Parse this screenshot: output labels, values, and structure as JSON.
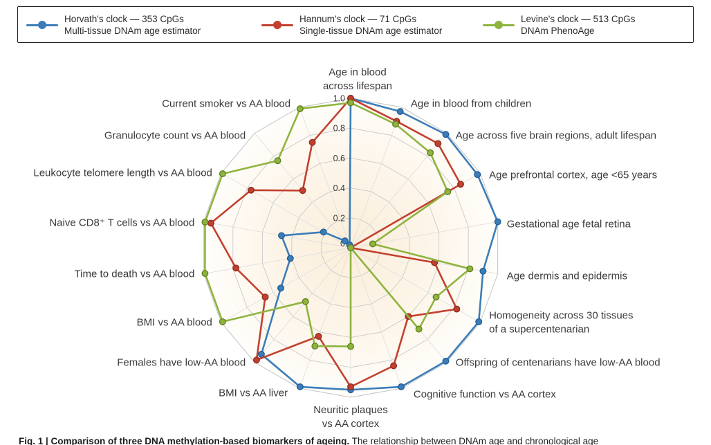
{
  "figure": {
    "caption_label": "Fig. 1 |",
    "caption_title": "Comparison of three DNA methylation-based biomarkers of ageing.",
    "caption_text": "The relationship between DNAm age and chronological age"
  },
  "legend": {
    "series": [
      {
        "line1": "Horvath's clock — 353 CpGs",
        "line2": "Multi-tissue DNAm age estimator"
      },
      {
        "line1": "Hannum's clock — 71 CpGs",
        "line2": "Single-tissue DNAm age estimator"
      },
      {
        "line1": "Levine's clock — 513 CpGs",
        "line2": "DNAm PhenoAge"
      }
    ]
  },
  "colors": {
    "horvath_blue": "#3c7db8",
    "horvath_edge": "#1e5d96",
    "hannum_red": "#c2402f",
    "hannum_edge": "#8e2b1f",
    "levine_green": "#8eb43f",
    "levine_edge": "#5f7f1e",
    "grid": "#c9c9c9",
    "spoke": "#e0e0e0",
    "fill_center": "#fbeeda",
    "fill_mid": "#fdf5e9",
    "fill_edge": "#fffefb",
    "text": "#3a3a3a"
  },
  "chart_data": {
    "type": "radar",
    "title": "",
    "rmin": 0,
    "rmax": 1.0,
    "grid": true,
    "legend_position": "top",
    "tick_labels": [
      "1.0",
      "0.8",
      "0.6",
      "0.4",
      "0.2",
      "0"
    ],
    "tick_values": [
      1.0,
      0.8,
      0.6,
      0.4,
      0.2,
      0
    ],
    "categories": [
      {
        "lines": [
          "Age in blood",
          "across lifespan"
        ]
      },
      {
        "lines": [
          "Age in blood from children"
        ]
      },
      {
        "lines": [
          "Age across five brain regions, adult lifespan"
        ]
      },
      {
        "lines": [
          "Age prefrontal cortex, age <65 years"
        ]
      },
      {
        "lines": [
          "Gestational age fetal retina"
        ]
      },
      {
        "lines": [
          "Age dermis and epidermis"
        ]
      },
      {
        "lines": [
          "Homogeneity across 30 tissues",
          "of a supercentenarian"
        ]
      },
      {
        "lines": [
          "Offspring of centenarians have low-AA blood"
        ]
      },
      {
        "lines": [
          "Cognitive function vs AA cortex"
        ]
      },
      {
        "lines": [
          "Neuritic plaques",
          "vs AA cortex"
        ]
      },
      {
        "lines": [
          "BMI vs AA liver"
        ]
      },
      {
        "lines": [
          "Females have low-AA blood"
        ]
      },
      {
        "lines": [
          "BMI vs AA blood"
        ]
      },
      {
        "lines": [
          "Time to death vs AA blood"
        ]
      },
      {
        "lines": [
          "Naive CD8⁺ T cells vs AA blood"
        ]
      },
      {
        "lines": [
          "Leukocyte telomere length vs AA blood"
        ]
      },
      {
        "lines": [
          "Granulocyte count vs AA blood"
        ]
      },
      {
        "lines": [
          "Current smoker vs AA blood"
        ]
      }
    ],
    "series": [
      {
        "name": "Horvath's clock",
        "color": "#3c7db8",
        "edge_color": "#1e5d96",
        "values": [
          1.0,
          0.97,
          0.99,
          0.98,
          1.0,
          0.9,
          0.99,
          0.99,
          0.99,
          0.95,
          0.99,
          0.93,
          0.54,
          0.41,
          0.47,
          0.21,
          0.06,
          0.02
        ]
      },
      {
        "name": "Hannum's clock",
        "color": "#c2402f",
        "edge_color": "#8e2b1f",
        "values": [
          1.0,
          0.9,
          0.91,
          0.85,
          0.0,
          0.57,
          0.82,
          0.6,
          0.84,
          0.93,
          0.63,
          0.98,
          0.66,
          0.78,
          0.95,
          0.77,
          0.5,
          0.75
        ]
      },
      {
        "name": "Levine's clock",
        "color": "#8eb43f",
        "edge_color": "#5f7f1e",
        "values": [
          0.97,
          0.88,
          0.83,
          0.75,
          0.15,
          0.81,
          0.66,
          0.71,
          0.0,
          0.66,
          0.7,
          0.47,
          0.99,
          0.99,
          0.99,
          0.99,
          0.76,
          0.99
        ]
      }
    ],
    "label_offsets": {
      "0": [
        10,
        0
      ],
      "1": [
        0,
        -5
      ],
      "2": [
        0,
        3
      ],
      "3": [
        0,
        3
      ],
      "4": [
        0,
        3
      ],
      "5": [
        0,
        3
      ],
      "8": [
        4,
        9
      ],
      "10": [
        -4,
        7
      ],
      "14": [
        0,
        1
      ],
      "16": [
        0,
        3
      ],
      "17": [
        0,
        -5
      ]
    }
  }
}
